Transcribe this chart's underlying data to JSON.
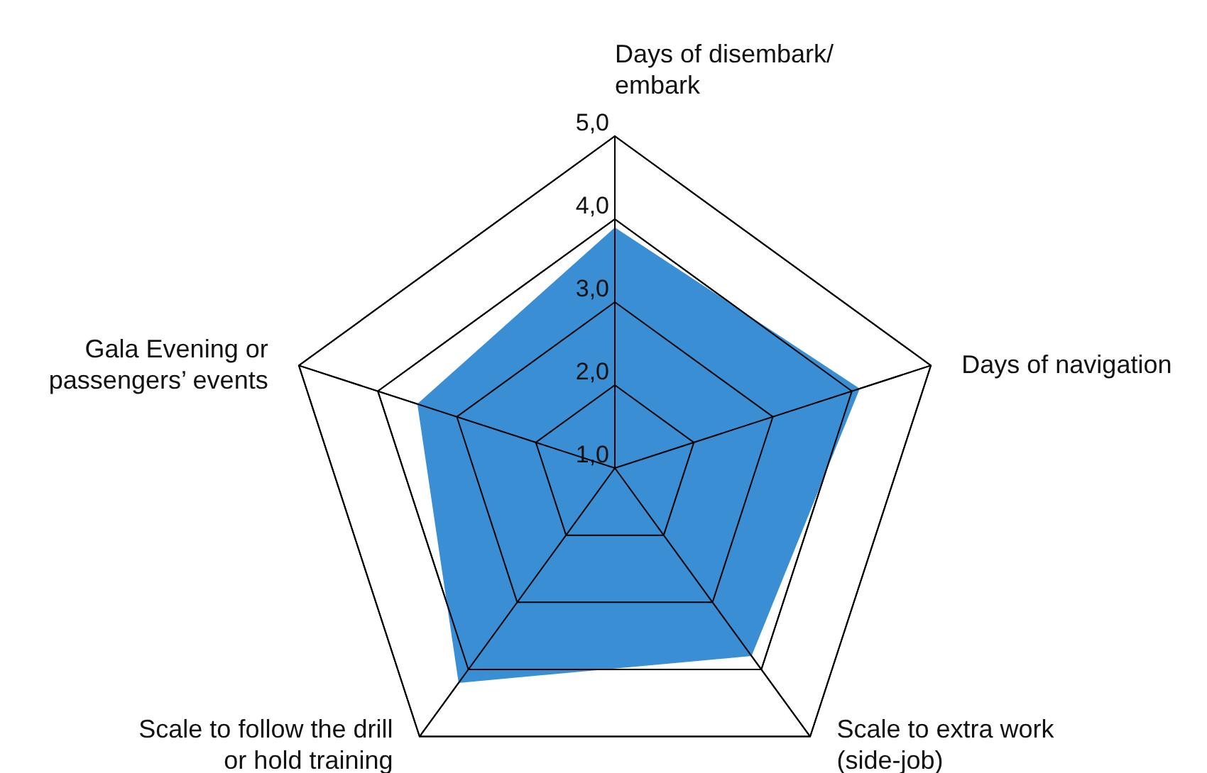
{
  "chart_data": {
    "type": "radar",
    "categories": [
      "Days of disembark/\nembark",
      "Days of navigation",
      "Scale to extra work\n(side-job)",
      "Scale to follow the drill\nor hold training",
      "Gala Evening or\npassengers’ events"
    ],
    "series": [
      {
        "color": "#3a8fd4",
        "values": [
          3.9,
          4.1,
          3.8,
          4.2,
          3.5
        ]
      }
    ],
    "ylim": [
      1,
      5
    ],
    "yticks": [
      {
        "value": 1,
        "label": "1,0"
      },
      {
        "value": 2,
        "label": "2,0"
      },
      {
        "value": 3,
        "label": "3,0"
      },
      {
        "value": 4,
        "label": "4,0"
      },
      {
        "value": 5,
        "label": "5,0"
      }
    ],
    "grid": true,
    "legend": false
  }
}
